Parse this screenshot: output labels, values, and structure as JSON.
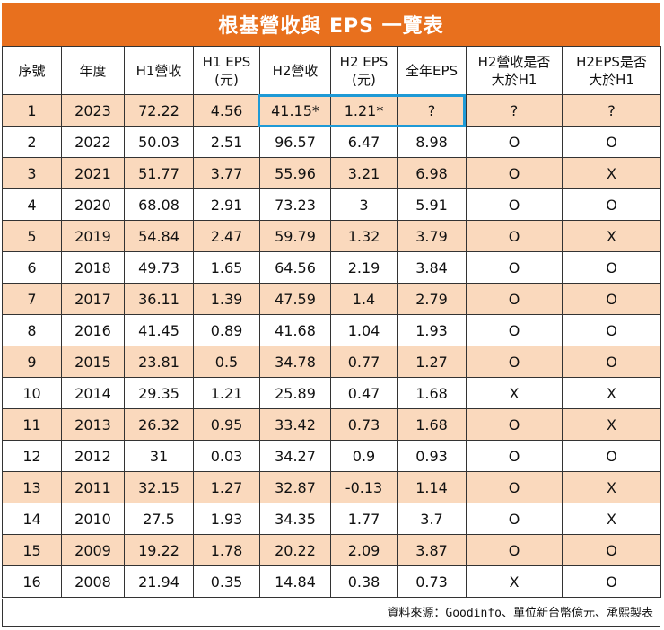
{
  "title": "根基營收與 EPS 一覽表",
  "headers": [
    "序號",
    "年度",
    "H1營收",
    "H1 EPS\n(元)",
    "H2營收",
    "H2 EPS\n(元)",
    "全年EPS",
    "H2營收是否\n大於H1",
    "H2EPS是否\n大於H1"
  ],
  "rows": [
    [
      "1",
      "2023",
      "72.22",
      "4.56",
      "41.15*",
      "1.21*",
      "?",
      "?",
      "?"
    ],
    [
      "2",
      "2022",
      "50.03",
      "2.51",
      "96.57",
      "6.47",
      "8.98",
      "O",
      "O"
    ],
    [
      "3",
      "2021",
      "51.77",
      "3.77",
      "55.96",
      "3.21",
      "6.98",
      "O",
      "X"
    ],
    [
      "4",
      "2020",
      "68.08",
      "2.91",
      "73.23",
      "3",
      "5.91",
      "O",
      "O"
    ],
    [
      "5",
      "2019",
      "54.84",
      "2.47",
      "59.79",
      "1.32",
      "3.79",
      "O",
      "X"
    ],
    [
      "6",
      "2018",
      "49.73",
      "1.65",
      "64.56",
      "2.19",
      "3.84",
      "O",
      "O"
    ],
    [
      "7",
      "2017",
      "36.11",
      "1.39",
      "47.59",
      "1.4",
      "2.79",
      "O",
      "O"
    ],
    [
      "8",
      "2016",
      "41.45",
      "0.89",
      "41.68",
      "1.04",
      "1.93",
      "O",
      "O"
    ],
    [
      "9",
      "2015",
      "23.81",
      "0.5",
      "34.78",
      "0.77",
      "1.27",
      "O",
      "O"
    ],
    [
      "10",
      "2014",
      "29.35",
      "1.21",
      "25.89",
      "0.47",
      "1.68",
      "X",
      "X"
    ],
    [
      "11",
      "2013",
      "26.32",
      "0.95",
      "33.42",
      "0.73",
      "1.68",
      "O",
      "X"
    ],
    [
      "12",
      "2012",
      "31",
      "0.03",
      "34.27",
      "0.9",
      "0.93",
      "O",
      "O"
    ],
    [
      "13",
      "2011",
      "32.15",
      "1.27",
      "32.87",
      "-0.13",
      "1.14",
      "O",
      "X"
    ],
    [
      "14",
      "2010",
      "27.5",
      "1.93",
      "34.35",
      "1.77",
      "3.7",
      "O",
      "X"
    ],
    [
      "15",
      "2009",
      "19.22",
      "1.78",
      "20.22",
      "2.09",
      "3.87",
      "O",
      "O"
    ],
    [
      "16",
      "2008",
      "21.94",
      "0.35",
      "14.84",
      "0.38",
      "0.73",
      "X",
      "O"
    ]
  ],
  "source": "資料來源：Goodinfo、單位新台幣億元、承熙製表",
  "colors": {
    "title_bg": "#e8701e",
    "stripe": "#fad9bd",
    "highlight": "#1e9ad6"
  }
}
